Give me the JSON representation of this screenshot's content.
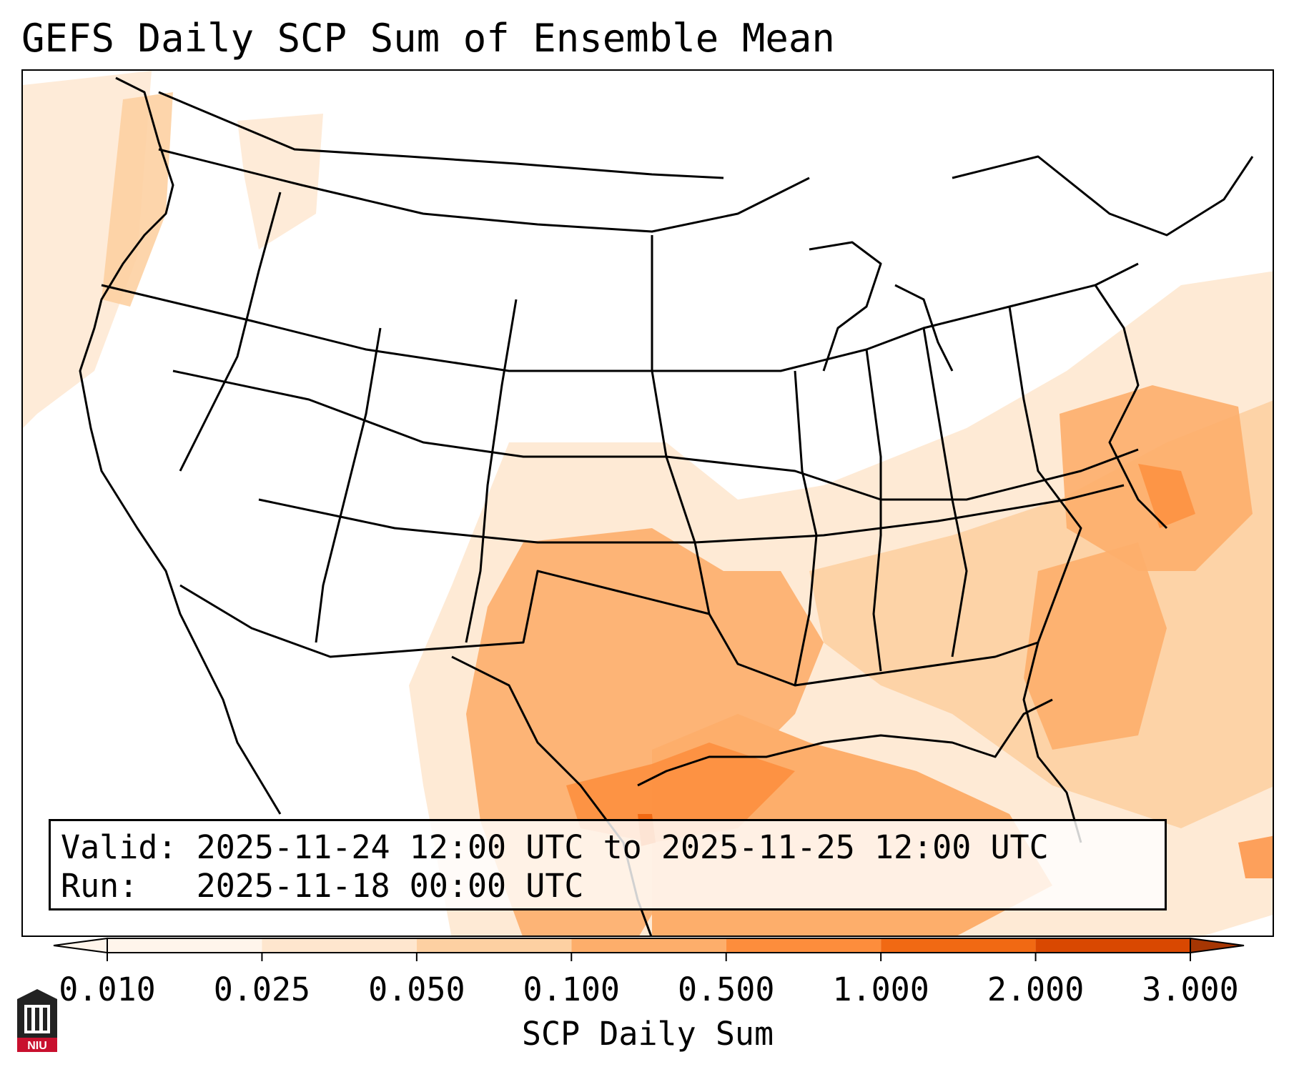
{
  "title": "GEFS Daily SCP Sum of Ensemble Mean",
  "info": {
    "valid_label": "Valid:",
    "valid_value": "2025-11-24 12:00 UTC to 2025-11-25 12:00 UTC",
    "run_label": "Run:",
    "run_value": "2025-11-18 00:00 UTC"
  },
  "colorbar": {
    "label": "SCP Daily Sum",
    "levels": [
      "0.010",
      "0.025",
      "0.050",
      "0.100",
      "0.500",
      "1.000",
      "2.000",
      "3.000"
    ],
    "colors": [
      "#fff5eb",
      "#fee6ce",
      "#fdd0a2",
      "#fdae6b",
      "#fd8d3c",
      "#f16913",
      "#d94801"
    ],
    "extend": "both"
  },
  "logo": {
    "text": "NIU",
    "color": "#c8102e"
  },
  "map_icon": "us-state-map"
}
